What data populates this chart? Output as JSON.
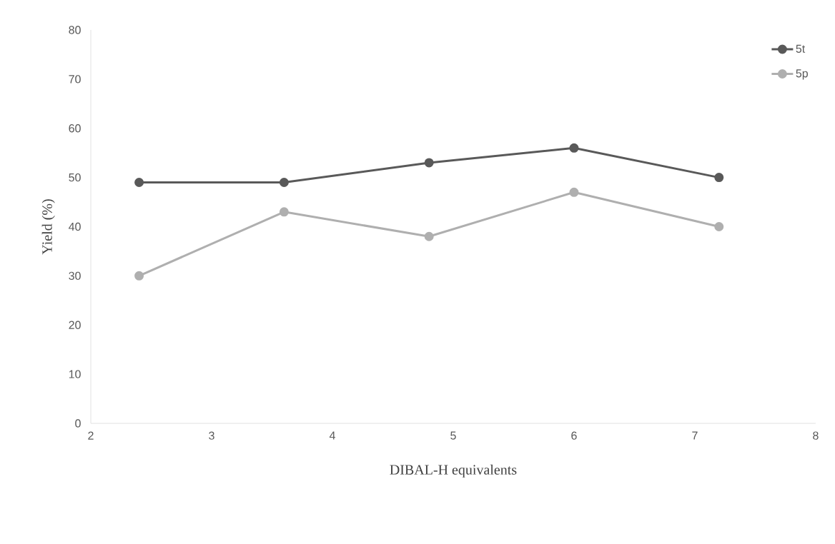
{
  "chart_data": {
    "type": "line",
    "xlabel": "DIBAL-H equivalents",
    "ylabel": "Yield (%)",
    "x": [
      2.4,
      3.6,
      4.8,
      6.0,
      7.2
    ],
    "series": [
      {
        "name": "5t",
        "color": "#595959",
        "values": [
          49,
          49,
          53,
          56,
          50
        ]
      },
      {
        "name": "5p",
        "color": "#afafaf",
        "values": [
          30,
          43,
          38,
          47,
          40
        ]
      }
    ],
    "xlim": [
      2,
      8
    ],
    "xticks": [
      2,
      3,
      4,
      5,
      6,
      7,
      8
    ],
    "ylim": [
      0,
      80
    ],
    "yticks": [
      0,
      10,
      20,
      30,
      40,
      50,
      60,
      70,
      80
    ],
    "grid": false,
    "legend": "top right",
    "marker": "circle",
    "line_style": "solid"
  }
}
